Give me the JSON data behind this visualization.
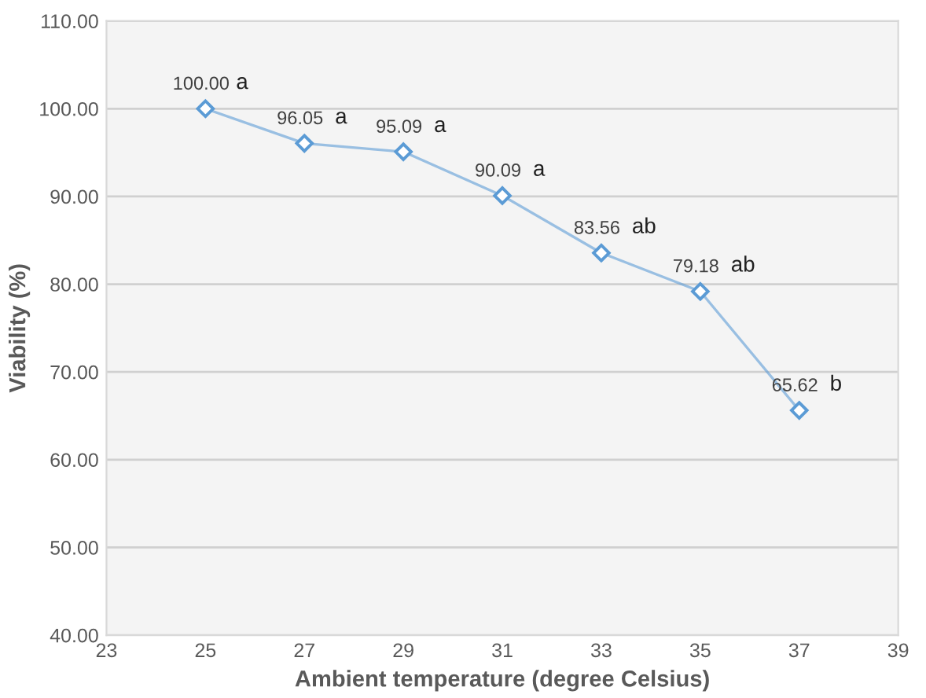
{
  "chart_data": {
    "type": "line",
    "xlabel": "Ambient temperature (degree Celsius)",
    "ylabel": "Viability (%)",
    "x": [
      25,
      27,
      29,
      31,
      33,
      35,
      37
    ],
    "series": [
      {
        "color": "#5b9bd5",
        "values": [
          100.0,
          96.05,
          95.09,
          90.09,
          83.56,
          79.18,
          65.62
        ],
        "value_labels": [
          "100.00",
          "96.05",
          "95.09",
          "90.09",
          "83.56",
          "79.18",
          "65.62"
        ]
      }
    ],
    "annotations": [
      {
        "text": "a",
        "x": 25,
        "y": 100.0
      },
      {
        "text": "a",
        "x": 27,
        "y": 96.05
      },
      {
        "text": "a",
        "x": 29,
        "y": 95.09
      },
      {
        "text": "a",
        "x": 31,
        "y": 90.09
      },
      {
        "text": "ab",
        "x": 33,
        "y": 83.56
      },
      {
        "text": "ab",
        "x": 35,
        "y": 79.18
      },
      {
        "text": "b",
        "x": 37,
        "y": 65.62
      }
    ],
    "xlim": [
      23,
      39
    ],
    "xticks": [
      23,
      25,
      27,
      29,
      31,
      33,
      35,
      37,
      39
    ],
    "ylim": [
      40,
      110
    ],
    "yticks": [
      {
        "value": 40,
        "label": "40.00"
      },
      {
        "value": 50,
        "label": "50.00"
      },
      {
        "value": 60,
        "label": "60.00"
      },
      {
        "value": 70,
        "label": "70.00"
      },
      {
        "value": 80,
        "label": "80.00"
      },
      {
        "value": 90,
        "label": "90.00"
      },
      {
        "value": 100,
        "label": "100.00"
      },
      {
        "value": 110,
        "label": "110.00"
      }
    ],
    "grid": "y",
    "marker": "diamond",
    "line_style": "solid"
  }
}
